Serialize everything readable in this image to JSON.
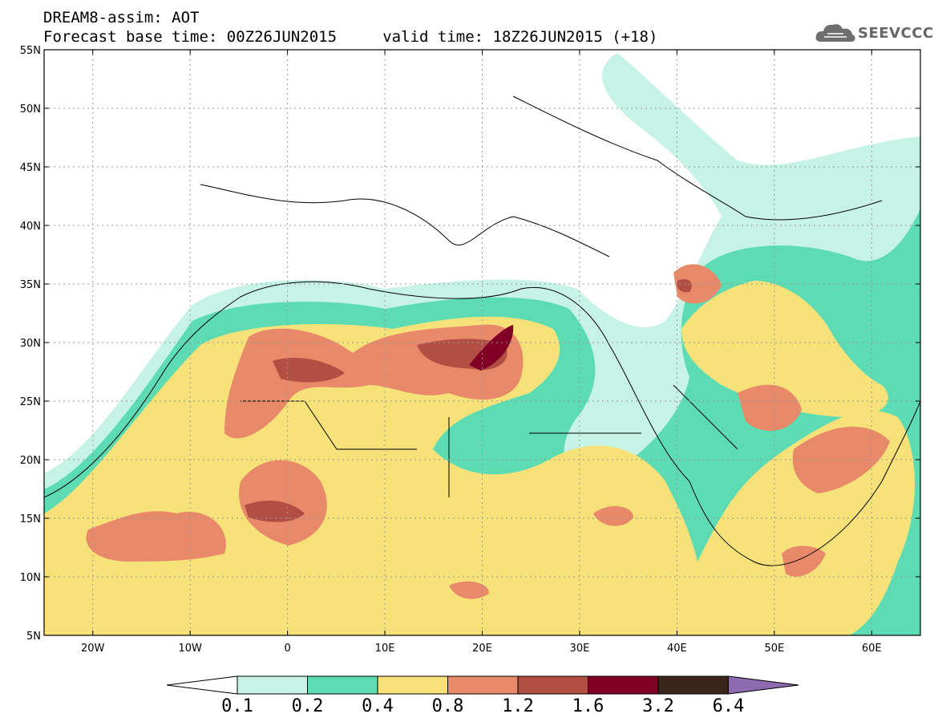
{
  "header": {
    "line1": "DREAM8-assim: AOT",
    "line2": "Forecast base time: 00Z26JUN2015     valid time: 18Z26JUN2015 (+18)"
  },
  "logo": {
    "text": "SEEVCCC",
    "icon": "cloud-icon"
  },
  "map": {
    "lon_range": [
      -25,
      65
    ],
    "lat_range": [
      5,
      55
    ],
    "lat_ticks": [
      {
        "value": 55,
        "label": "55N"
      },
      {
        "value": 50,
        "label": "50N"
      },
      {
        "value": 45,
        "label": "45N"
      },
      {
        "value": 40,
        "label": "40N"
      },
      {
        "value": 35,
        "label": "35N"
      },
      {
        "value": 30,
        "label": "30N"
      },
      {
        "value": 25,
        "label": "25N"
      },
      {
        "value": 20,
        "label": "20N"
      },
      {
        "value": 15,
        "label": "15N"
      },
      {
        "value": 10,
        "label": "10N"
      },
      {
        "value": 5,
        "label": "5N"
      }
    ],
    "lon_ticks": [
      {
        "value": -20,
        "label": "20W"
      },
      {
        "value": -10,
        "label": "10W"
      },
      {
        "value": 0,
        "label": "0"
      },
      {
        "value": 10,
        "label": "10E"
      },
      {
        "value": 20,
        "label": "20E"
      },
      {
        "value": 30,
        "label": "30E"
      },
      {
        "value": 40,
        "label": "40E"
      },
      {
        "value": 50,
        "label": "50E"
      },
      {
        "value": 60,
        "label": "60E"
      }
    ]
  },
  "colorbar": {
    "colors": [
      "#ffffff",
      "#c6f3e6",
      "#5ddcb4",
      "#f7e27a",
      "#e8896a",
      "#b24e44",
      "#800026",
      "#3a2618",
      "#8e6bb0"
    ],
    "labels": [
      "0.1",
      "0.2",
      "0.4",
      "0.8",
      "1.2",
      "1.6",
      "3.2",
      "6.4"
    ]
  }
}
